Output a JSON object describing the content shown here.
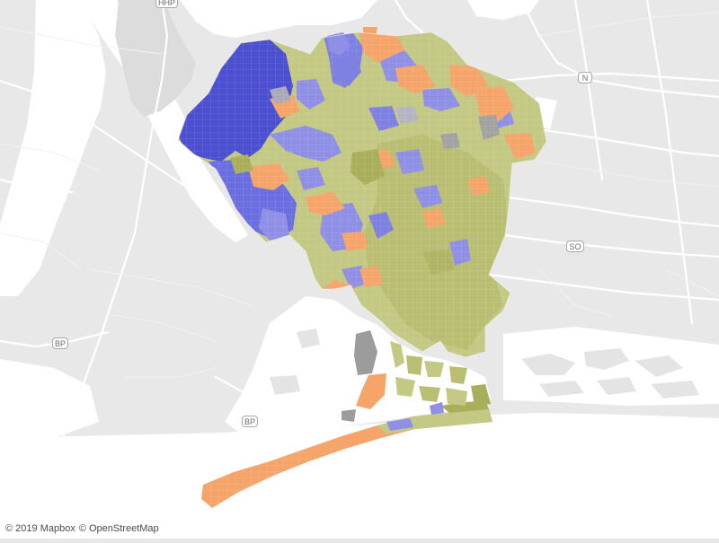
{
  "map": {
    "highway_shields": [
      {
        "id": "hhp",
        "label": "HHP"
      },
      {
        "id": "n",
        "label": "N"
      },
      {
        "id": "so",
        "label": "SO"
      },
      {
        "id": "bp-west",
        "label": "BP"
      },
      {
        "id": "bp-south",
        "label": "BP"
      }
    ],
    "attribution": {
      "mapbox": "© 2019 Mapbox",
      "osm": "© OpenStreetMap"
    },
    "colors": {
      "background": "#e8e8e8",
      "water": "#ffffff",
      "roads": "#ffffff",
      "category_blue_dark": "#4b4fd0",
      "category_blue_light": "#8f8fe6",
      "category_olive": "#c3c883",
      "category_olive_dark": "#a9ae5a",
      "category_orange": "#f6a56a",
      "category_gray": "#a2a2a2"
    }
  }
}
